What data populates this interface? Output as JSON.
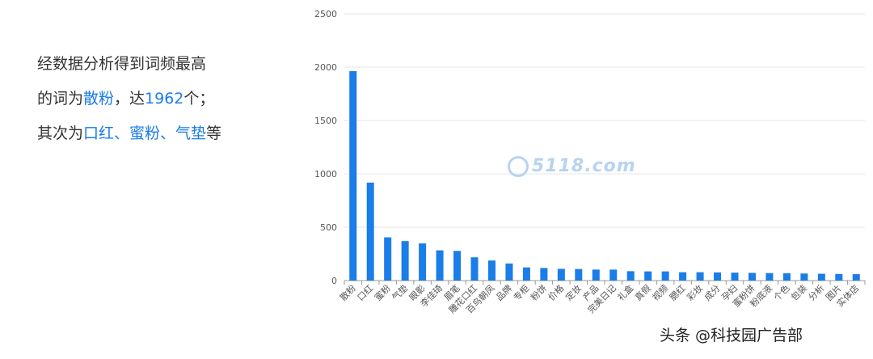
{
  "summary": {
    "line1": "经数据分析得到词频最高",
    "line2_prefix": "的词为",
    "line2_top_word": "散粉",
    "line2_mid": "，达",
    "line2_count": "1962",
    "line2_suffix": "个；",
    "line3_prefix": "其次为",
    "line3_words": "口红、蜜粉、气垫",
    "line3_suffix": "等"
  },
  "watermark": "5118.com",
  "credit": "头条 @科技园广告部",
  "colors": {
    "bar": "#1a7de8",
    "highlight": "#1a7de8",
    "grid": "#e6e6e6",
    "axis": "#999999",
    "text": "#333333"
  },
  "chart_data": {
    "type": "bar",
    "categories": [
      "散粉",
      "口红",
      "蜜粉",
      "气垫",
      "眼影",
      "李佳琦",
      "眉笔",
      "雕花口红",
      "百鸟朝凤",
      "品牌",
      "专柜",
      "粉饼",
      "价格",
      "定妆",
      "产品",
      "完美日记",
      "礼盒",
      "真假",
      "视频",
      "腮红",
      "彩妆",
      "成分",
      "孕妇",
      "蜜粉饼",
      "粉底液",
      "个色",
      "包装",
      "分析",
      "图片",
      "实体店"
    ],
    "values": [
      1962,
      918,
      405,
      370,
      348,
      283,
      278,
      218,
      188,
      160,
      123,
      118,
      110,
      108,
      103,
      103,
      88,
      86,
      86,
      78,
      78,
      76,
      74,
      72,
      70,
      68,
      66,
      64,
      62,
      60
    ],
    "yticks": [
      0,
      500,
      1000,
      1500,
      2000,
      2500
    ],
    "ylim": [
      0,
      2500
    ],
    "title": "",
    "xlabel": "",
    "ylabel": "",
    "grid": true
  }
}
